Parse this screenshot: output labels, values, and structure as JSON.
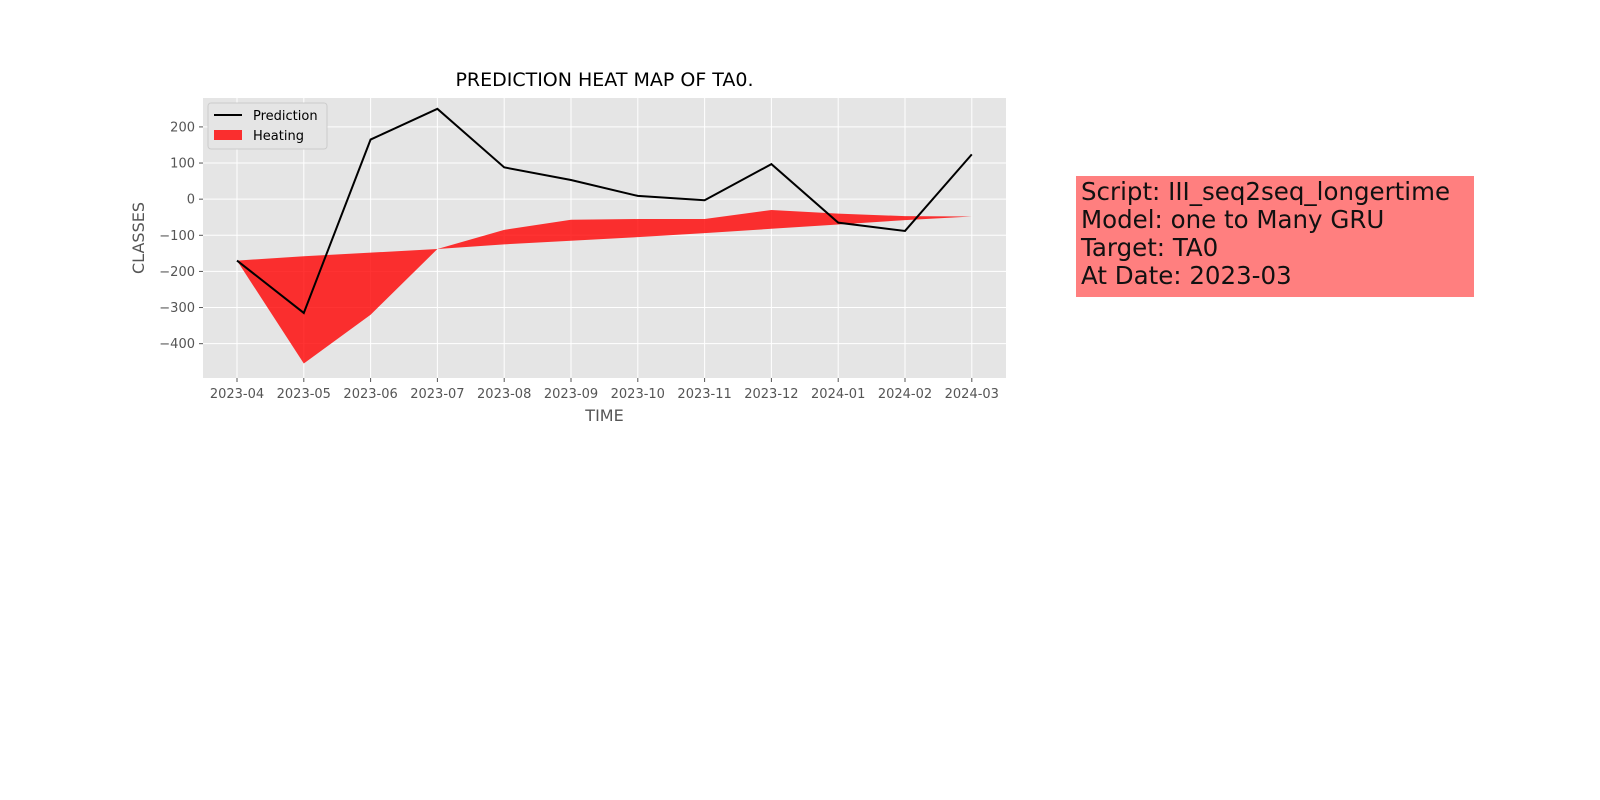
{
  "chart_data": {
    "type": "line",
    "title": "PREDICTION HEAT MAP OF TA0.",
    "xlabel": "TIME",
    "ylabel": "CLASSES",
    "categories": [
      "2023-04",
      "2023-05",
      "2023-06",
      "2023-07",
      "2023-08",
      "2023-09",
      "2023-10",
      "2023-11",
      "2023-12",
      "2024-01",
      "2024-02",
      "2024-03"
    ],
    "ylim": [
      -495,
      280
    ],
    "yticks": [
      200,
      100,
      0,
      -100,
      -200,
      -300,
      -400
    ],
    "grid": true,
    "legend_position": "top-left",
    "series": [
      {
        "name": "Prediction",
        "kind": "line",
        "color": "#000000",
        "values": [
          -170,
          -315,
          165,
          250,
          88,
          53,
          9,
          -3,
          97,
          -65,
          -88,
          124
        ]
      },
      {
        "name": "Heating",
        "kind": "fill_between",
        "color": "#ff0000",
        "upper": [
          -170,
          -158,
          -148,
          -138,
          -85,
          -57,
          -55,
          -55,
          -30,
          -40,
          -47,
          -48
        ],
        "lower": [
          -170,
          -455,
          -320,
          -138,
          -125,
          -115,
          -105,
          -94,
          -82,
          -70,
          -58,
          -48
        ]
      }
    ]
  },
  "info_box": {
    "lines": [
      "Script: III_seq2seq_longertime",
      "Model: one to Many GRU",
      "Target: TA0",
      "At Date: 2023-03"
    ],
    "background": "#ff7f7f"
  }
}
